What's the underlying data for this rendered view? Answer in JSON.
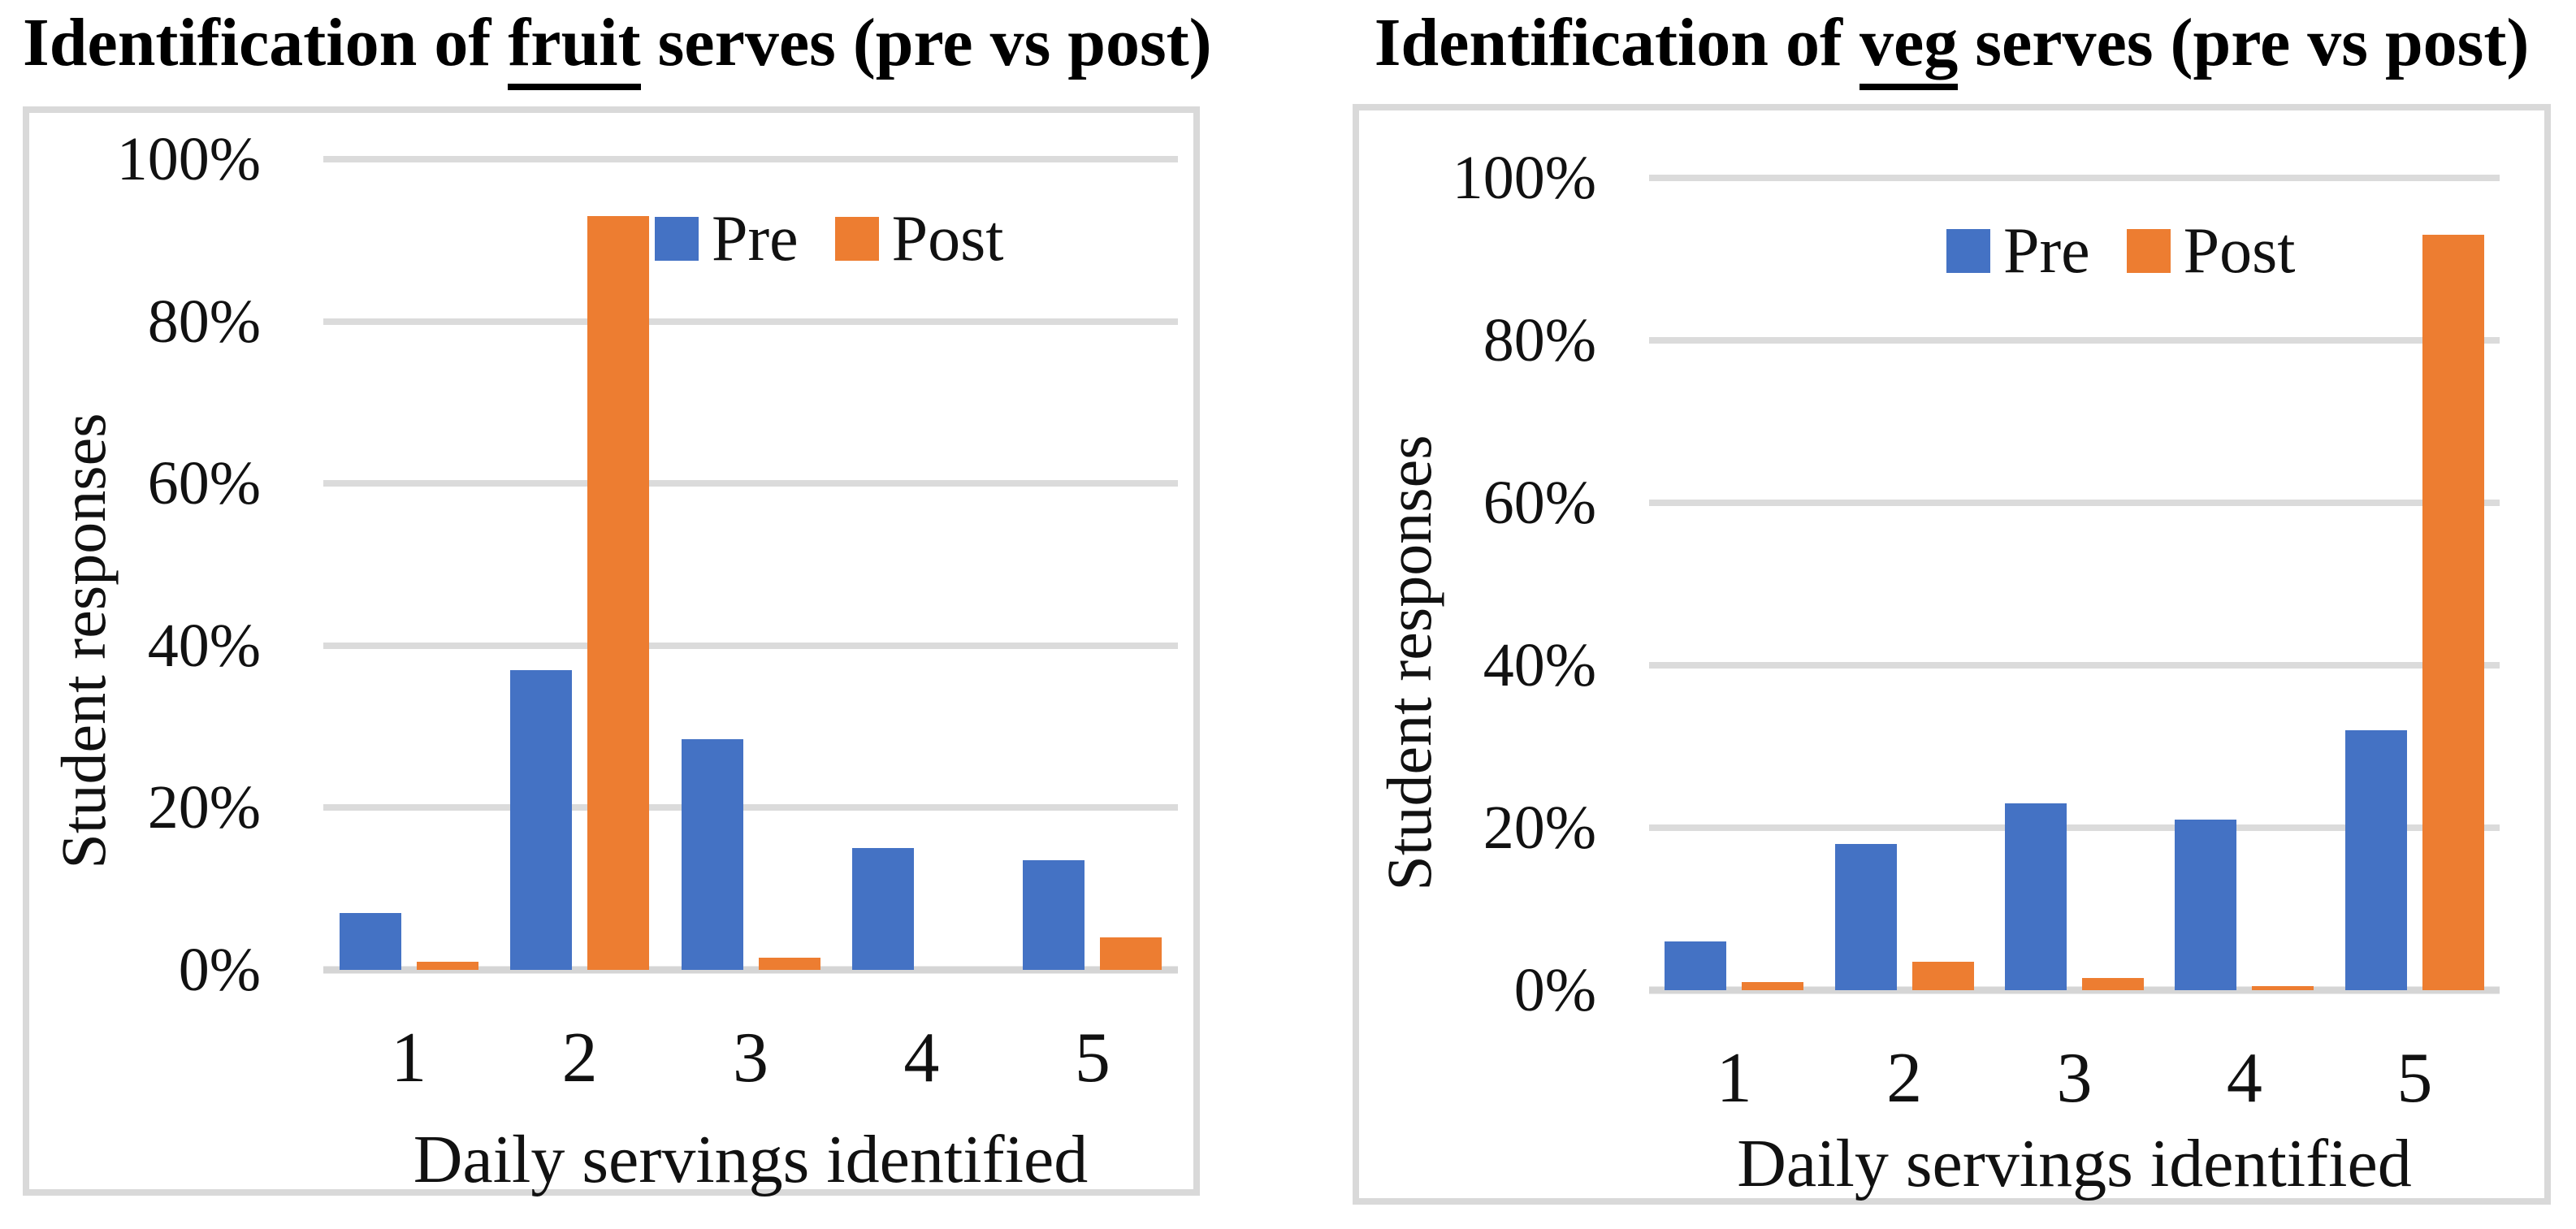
{
  "figure": {
    "charts": [
      {
        "title_prefix": "Identification of ",
        "title_underlined": "fruit",
        "title_suffix": " serves (pre vs post)"
      },
      {
        "title_prefix": "Identification of ",
        "title_underlined": "veg",
        "title_suffix": " serves (pre vs post)"
      }
    ]
  },
  "chart_data": [
    {
      "type": "bar",
      "title": "Identification of fruit serves (pre vs post)",
      "categories": [
        "1",
        "2",
        "3",
        "4",
        "5"
      ],
      "series": [
        {
          "name": "Pre",
          "color": "#4472C4",
          "values": [
            7,
            37,
            28.5,
            15,
            13.5
          ]
        },
        {
          "name": "Post",
          "color": "#ED7D31",
          "values": [
            1,
            93,
            1.5,
            0,
            4
          ]
        }
      ],
      "xlabel": "Daily servings identified",
      "ylabel": "Student responses",
      "ylim": [
        0,
        100
      ],
      "y_ticks": [
        "100%",
        "80%",
        "60%",
        "40%",
        "20%",
        "0%"
      ],
      "grid": true,
      "legend_position": "top-inside"
    },
    {
      "type": "bar",
      "title": "Identification of veg serves (pre vs post)",
      "categories": [
        "1",
        "2",
        "3",
        "4",
        "5"
      ],
      "series": [
        {
          "name": "Pre",
          "color": "#4472C4",
          "values": [
            6,
            18,
            23,
            21,
            32
          ]
        },
        {
          "name": "Post",
          "color": "#ED7D31",
          "values": [
            1,
            3.5,
            1.5,
            0.5,
            93
          ]
        }
      ],
      "xlabel": "Daily servings identified",
      "ylabel": "Student responses",
      "ylim": [
        0,
        100
      ],
      "y_ticks": [
        "100%",
        "80%",
        "60%",
        "40%",
        "20%",
        "0%"
      ],
      "grid": true,
      "legend_position": "top-inside"
    }
  ],
  "colors": {
    "pre": "#4472C4",
    "post": "#ED7D31",
    "gridline": "#DBDBDB",
    "axis_line": "#D5D5D5",
    "panel_border": "#D9D9D9",
    "text": "#111111"
  }
}
